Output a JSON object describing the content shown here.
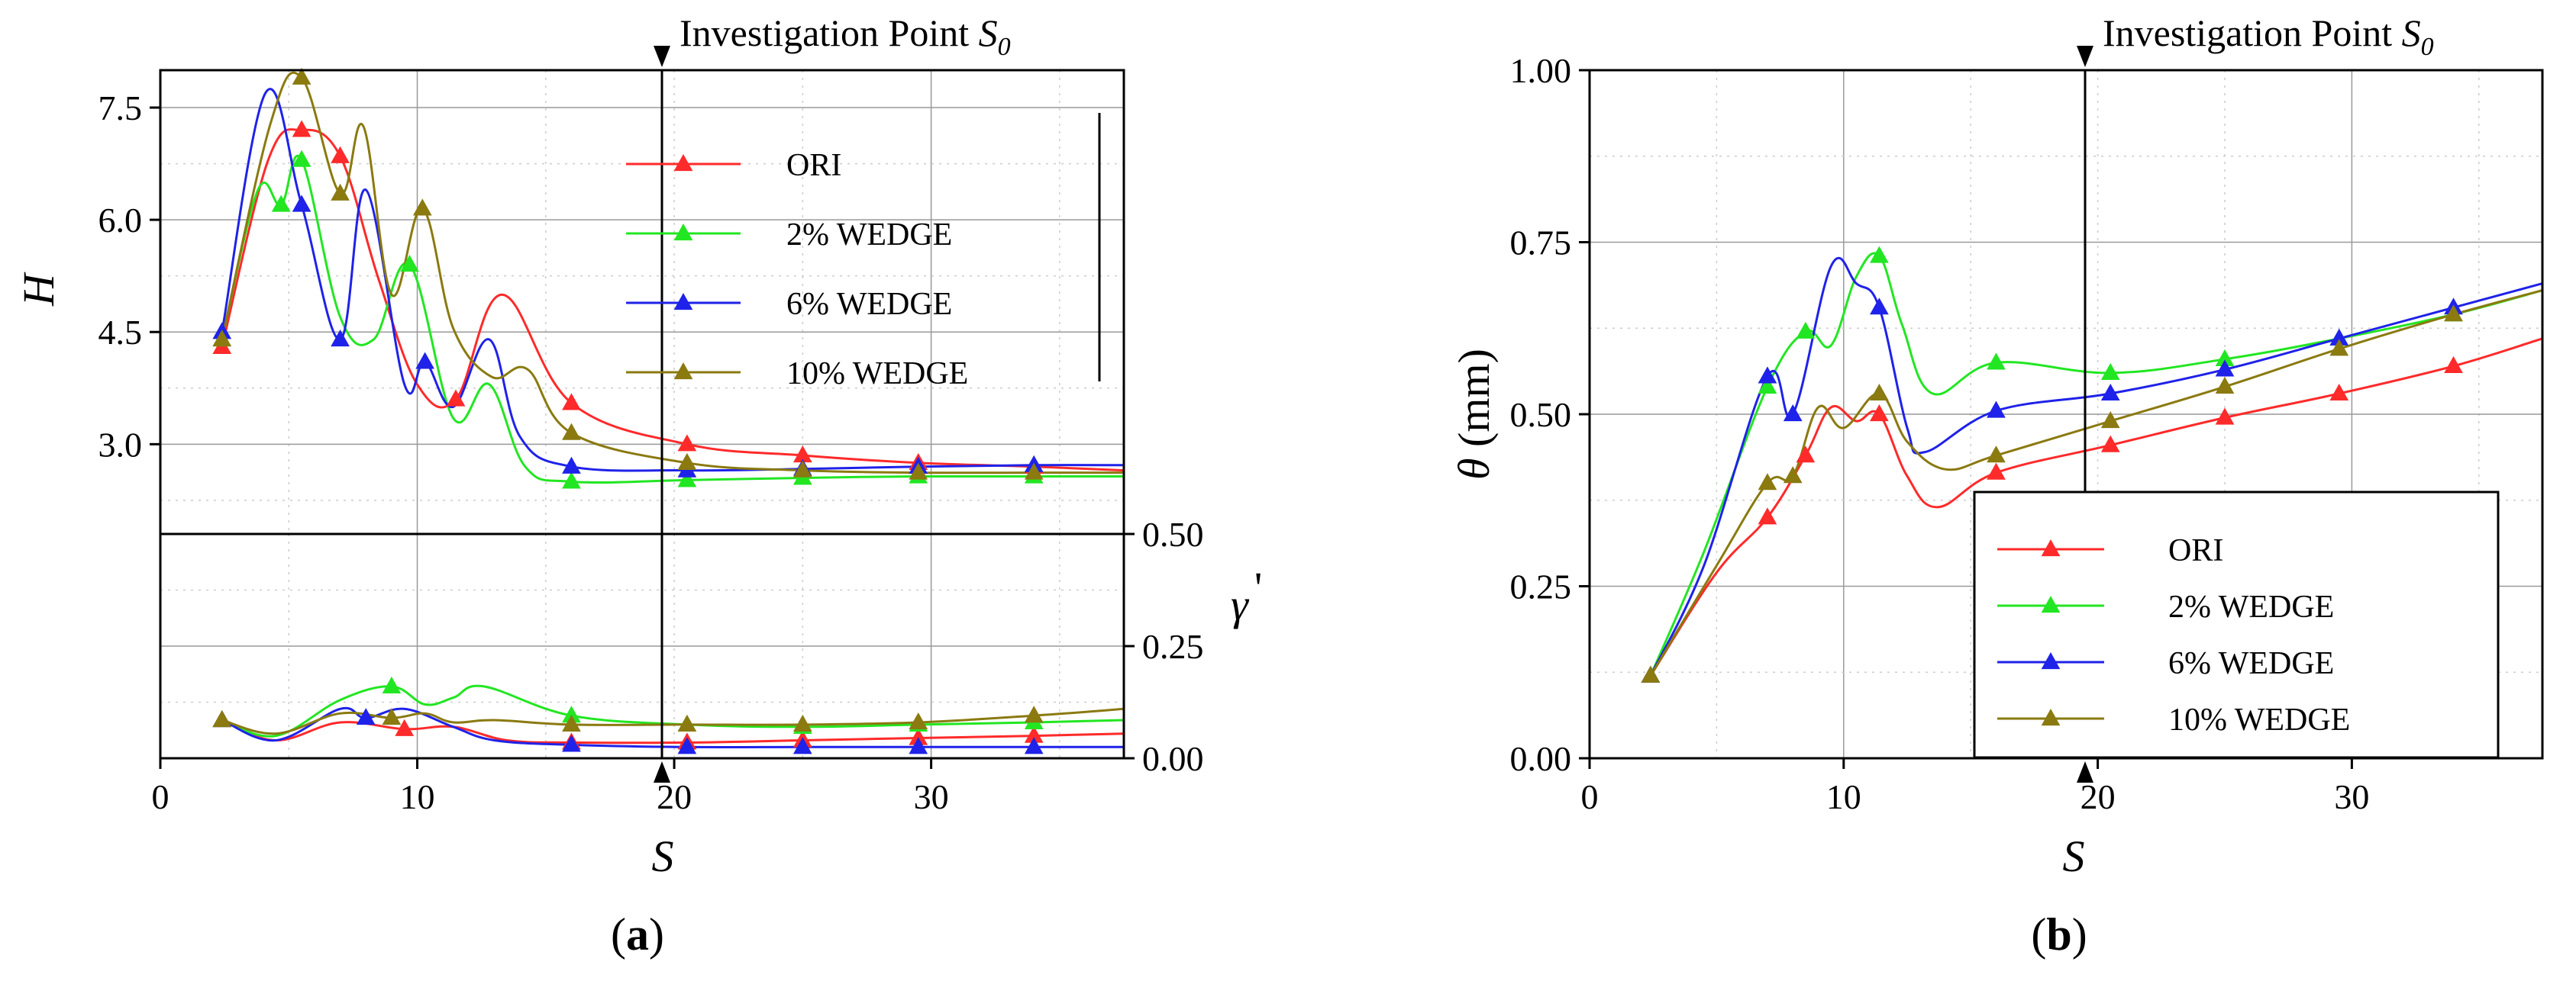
{
  "colors": {
    "ORI": "#ff2a2a",
    "2% WEDGE": "#22e622",
    "6% WEDGE": "#1f22e8",
    "10% WEDGE": "#8a7a10"
  },
  "chart_data": [
    {
      "id": "a-top",
      "type": "line",
      "panel_label": "(a)",
      "panel_letter": "a",
      "title": "",
      "annotation": "Investigation Point S0",
      "annotation_text": "Investigation Point ",
      "annotation_symbol": "S",
      "annotation_sub": "0",
      "xlabel": "S",
      "ylabel": "H",
      "xlim": [
        0,
        37.5
      ],
      "ylim": [
        1.8,
        8.0
      ],
      "xticks": [
        "0",
        "10",
        "20",
        "30"
      ],
      "yticks": [
        "3.0",
        "4.5",
        "6.0",
        "7.5"
      ],
      "investigation_x": 19.5,
      "legend": [
        "ORI",
        "2% WEDGE",
        "6% WEDGE",
        "10% WEDGE"
      ],
      "legend_position": "top-right",
      "series": [
        {
          "name": "ORI",
          "x": [
            2.4,
            4.2,
            5.5,
            7.0,
            8.5,
            10.0,
            11.5,
            13.3,
            16.0,
            20.5,
            25.0,
            29.5,
            34.0,
            37.5
          ],
          "y": [
            4.3,
            6.8,
            7.2,
            6.85,
            5.2,
            3.8,
            3.6,
            5.0,
            3.55,
            3.0,
            2.85,
            2.75,
            2.7,
            2.65
          ]
        },
        {
          "name": "2% WEDGE",
          "x": [
            2.4,
            3.8,
            4.7,
            5.5,
            7.0,
            8.3,
            9.7,
            11.4,
            12.8,
            14.2,
            16.0,
            20.5,
            25.0,
            29.5,
            34.0,
            37.5
          ],
          "y": [
            4.4,
            6.4,
            6.2,
            6.8,
            4.7,
            4.4,
            5.4,
            3.35,
            3.8,
            2.7,
            2.5,
            2.52,
            2.55,
            2.57,
            2.57,
            2.57
          ]
        },
        {
          "name": "6% WEDGE",
          "x": [
            2.4,
            4.1,
            5.5,
            7.0,
            8.0,
            9.5,
            10.3,
            11.4,
            12.8,
            14.0,
            16.0,
            20.5,
            25.0,
            29.5,
            34.0,
            37.5
          ],
          "y": [
            4.5,
            7.7,
            6.2,
            4.4,
            6.4,
            3.8,
            4.1,
            3.5,
            4.4,
            3.1,
            2.7,
            2.65,
            2.67,
            2.7,
            2.72,
            2.72
          ]
        },
        {
          "name": "10% WEDGE",
          "x": [
            2.4,
            4.3,
            5.5,
            7.0,
            7.9,
            9.0,
            10.2,
            11.4,
            12.9,
            14.3,
            16.0,
            20.5,
            25.0,
            29.5,
            34.0,
            37.5
          ],
          "y": [
            4.4,
            7.3,
            7.9,
            6.35,
            7.25,
            5.0,
            6.15,
            4.55,
            3.9,
            4.0,
            3.15,
            2.75,
            2.65,
            2.62,
            2.62,
            2.62
          ]
        }
      ]
    },
    {
      "id": "a-bottom",
      "type": "line",
      "xlabel": "S",
      "ylabel": "γ'",
      "ylabel_main": "γ",
      "ylabel_prime": "'",
      "xlim": [
        0,
        37.5
      ],
      "ylim": [
        0.0,
        0.5
      ],
      "xticks": [
        "0",
        "10",
        "20",
        "30"
      ],
      "yticks": [
        "0.00",
        "0.25",
        "0.50"
      ],
      "investigation_x": 19.5,
      "series": [
        {
          "name": "ORI",
          "x": [
            2.4,
            4.5,
            7.0,
            9.5,
            11.4,
            13.5,
            16.0,
            20.5,
            25.0,
            29.5,
            34.0,
            37.5
          ],
          "y": [
            0.085,
            0.04,
            0.08,
            0.065,
            0.07,
            0.04,
            0.035,
            0.035,
            0.04,
            0.045,
            0.05,
            0.055
          ]
        },
        {
          "name": "2% WEDGE",
          "x": [
            2.4,
            4.5,
            7.0,
            9.0,
            10.3,
            11.4,
            12.6,
            16.0,
            20.5,
            25.0,
            29.5,
            34.0,
            37.5
          ],
          "y": [
            0.085,
            0.05,
            0.13,
            0.16,
            0.12,
            0.135,
            0.16,
            0.095,
            0.075,
            0.07,
            0.075,
            0.08,
            0.085
          ]
        },
        {
          "name": "6% WEDGE",
          "x": [
            2.4,
            4.5,
            7.0,
            8.0,
            9.5,
            11.4,
            13.0,
            16.0,
            20.5,
            25.0,
            29.5,
            34.0,
            37.5
          ],
          "y": [
            0.085,
            0.04,
            0.11,
            0.09,
            0.11,
            0.07,
            0.04,
            0.03,
            0.025,
            0.025,
            0.025,
            0.025,
            0.025
          ]
        },
        {
          "name": "10% WEDGE",
          "x": [
            2.4,
            4.5,
            7.0,
            9.0,
            10.3,
            11.4,
            13.0,
            16.0,
            20.5,
            25.0,
            29.5,
            34.0,
            37.5
          ],
          "y": [
            0.085,
            0.055,
            0.1,
            0.09,
            0.1,
            0.08,
            0.085,
            0.075,
            0.075,
            0.075,
            0.08,
            0.095,
            0.11
          ]
        }
      ]
    },
    {
      "id": "b",
      "type": "line",
      "panel_label": "(b)",
      "panel_letter": "b",
      "annotation": "Investigation Point S0",
      "annotation_text": "Investigation Point ",
      "annotation_symbol": "S",
      "annotation_sub": "0",
      "xlabel": "S",
      "ylabel": "θ (mm)",
      "ylabel_symbol": "θ",
      "ylabel_unit": " (mm)",
      "xlim": [
        0,
        37.5
      ],
      "ylim": [
        0.0,
        1.0
      ],
      "xticks": [
        "0",
        "10",
        "20",
        "30"
      ],
      "yticks": [
        "0.00",
        "0.25",
        "0.50",
        "0.75",
        "1.00"
      ],
      "investigation_x": 19.5,
      "legend": [
        "ORI",
        "2% WEDGE",
        "6% WEDGE",
        "10% WEDGE"
      ],
      "legend_position": "bottom-right",
      "series": [
        {
          "name": "ORI",
          "x": [
            2.4,
            5.0,
            7.0,
            8.5,
            9.5,
            10.5,
            11.4,
            12.5,
            13.7,
            16.0,
            20.5,
            25.0,
            29.5,
            34.0,
            37.5
          ],
          "y": [
            0.12,
            0.27,
            0.35,
            0.44,
            0.51,
            0.49,
            0.5,
            0.41,
            0.365,
            0.415,
            0.455,
            0.495,
            0.53,
            0.57,
            0.61
          ]
        },
        {
          "name": "2% WEDGE",
          "x": [
            2.4,
            4.5,
            7.0,
            8.5,
            9.5,
            10.5,
            11.4,
            12.3,
            13.5,
            16.0,
            20.5,
            25.0,
            29.5,
            34.0,
            37.5
          ],
          "y": [
            0.12,
            0.3,
            0.54,
            0.62,
            0.6,
            0.7,
            0.73,
            0.63,
            0.53,
            0.575,
            0.56,
            0.58,
            0.61,
            0.645,
            0.68
          ]
        },
        {
          "name": "6% WEDGE",
          "x": [
            2.4,
            4.5,
            7.0,
            8.0,
            9.5,
            10.5,
            11.4,
            12.5,
            13.2,
            16.0,
            20.5,
            25.0,
            29.5,
            34.0,
            37.5
          ],
          "y": [
            0.12,
            0.28,
            0.555,
            0.5,
            0.715,
            0.69,
            0.655,
            0.48,
            0.445,
            0.505,
            0.53,
            0.565,
            0.61,
            0.655,
            0.69
          ]
        },
        {
          "name": "10% WEDGE",
          "x": [
            2.4,
            5.0,
            7.0,
            8.0,
            9.0,
            10.0,
            11.4,
            12.5,
            14.0,
            16.0,
            20.5,
            25.0,
            29.5,
            34.0,
            37.5
          ],
          "y": [
            0.12,
            0.28,
            0.4,
            0.41,
            0.51,
            0.48,
            0.53,
            0.46,
            0.42,
            0.44,
            0.49,
            0.54,
            0.595,
            0.645,
            0.68
          ]
        }
      ]
    }
  ]
}
